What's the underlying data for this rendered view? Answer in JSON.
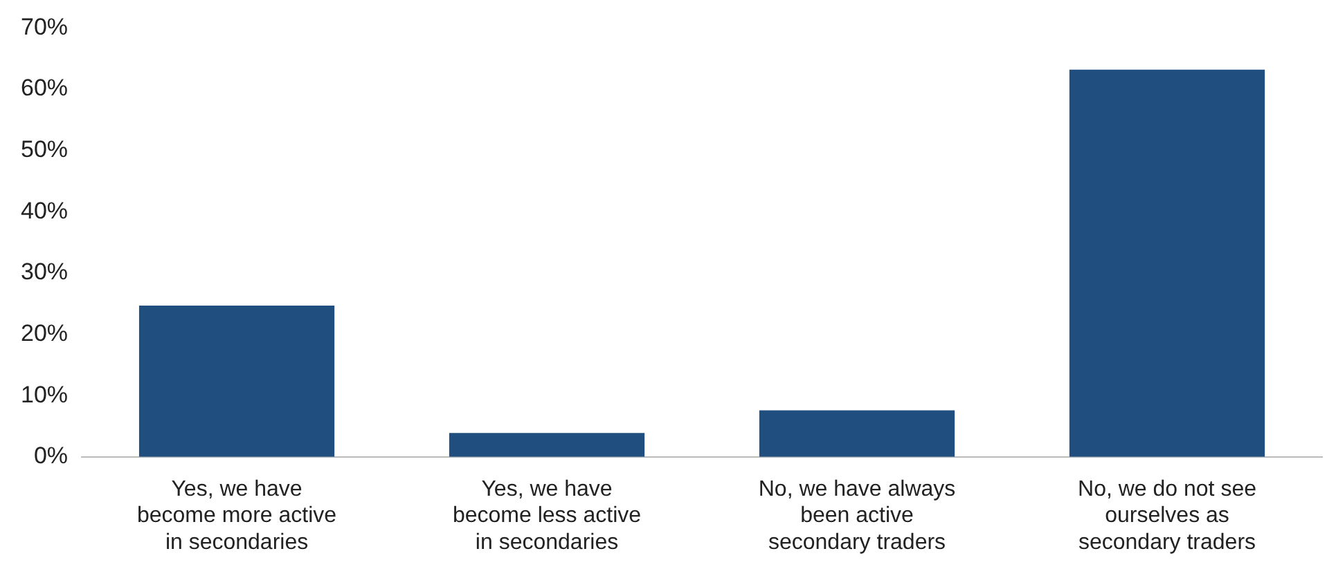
{
  "chart_data": {
    "type": "bar",
    "categories": [
      "Yes, we have become more active in secondaries",
      "Yes, we have become less active in secondaries",
      "No, we have always been active secondary traders",
      "No, we do not see ourselves as secondary traders"
    ],
    "values": [
      24.7,
      3.9,
      7.6,
      63.2
    ],
    "color": "#1f4e7f",
    "ylim": [
      0,
      70
    ],
    "yticks": [
      {
        "value": 0,
        "label": "0%"
      },
      {
        "value": 10,
        "label": "10%"
      },
      {
        "value": 20,
        "label": "20%"
      },
      {
        "value": 30,
        "label": "30%"
      },
      {
        "value": 40,
        "label": "40%"
      },
      {
        "value": 50,
        "label": "50%"
      },
      {
        "value": 60,
        "label": "60%"
      },
      {
        "value": 70,
        "label": "70%"
      }
    ],
    "grid": false,
    "legend": false
  }
}
